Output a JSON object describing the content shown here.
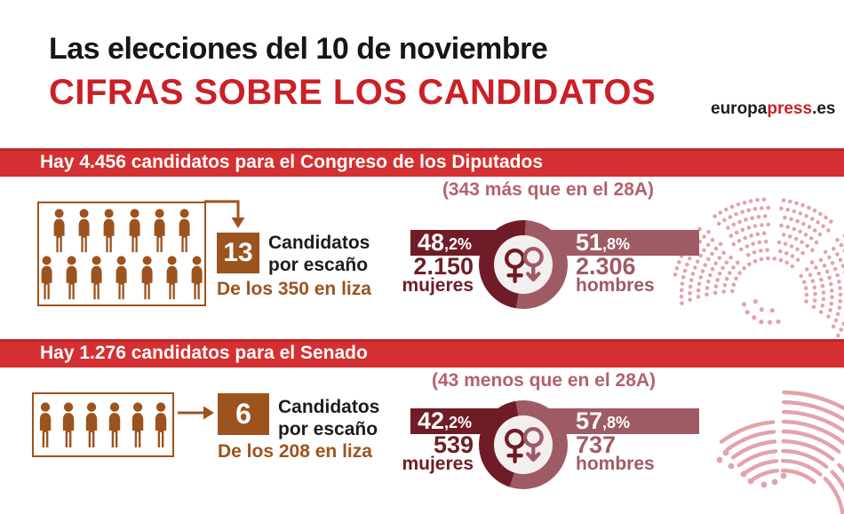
{
  "header": {
    "title": "Las elecciones del 10 de noviembre",
    "subtitle": "CIFRAS SOBRE LOS CANDIDATOS",
    "logo": {
      "black1": "europa",
      "red": "press",
      "black2": ".es"
    }
  },
  "colors": {
    "red": "#CB2026",
    "bar_red": "#D43032",
    "brown": "#9C531E",
    "dark_maroon": "#701C27",
    "mauve": "#9F5B64",
    "rose_note": "#B4616C",
    "seat_pink": "#E2A3AA",
    "donut_hole": "#F4EFEF"
  },
  "icons": {
    "person": "person-icon",
    "female": "female-gender-icon",
    "male": "male-gender-arrow-down-icon",
    "flow_arrow": "flow-arrow-icon",
    "congress_seats": "congress-hemicycle-icon",
    "senate_seats": "senate-hemicycle-icon"
  },
  "sections": [
    {
      "bar_title": "Hay 4.456 candidatos para el Congreso de los Diputados",
      "note": "(343 más que en el 28A)",
      "pictogram_rows": [
        6,
        7
      ],
      "per_seat": {
        "number": "13",
        "label": "Candidatos\npor escaño",
        "sublabel": "De los 350 en liza"
      },
      "women": {
        "pct_int": "48",
        "pct_dec": ",2%",
        "count": "2.150",
        "label": "mujeres",
        "value": 48.2
      },
      "men": {
        "pct_int": "51",
        "pct_dec": ",8%",
        "count": "2.306",
        "label": "hombres",
        "value": 51.8
      },
      "seats_total": 350
    },
    {
      "bar_title": "Hay 1.276 candidatos para el Senado",
      "note": "(43 menos que en el 28A)",
      "pictogram_rows": [
        6
      ],
      "per_seat": {
        "number": "6",
        "label": "Candidatos\npor escaño",
        "sublabel": "De los 208 en liza"
      },
      "women": {
        "pct_int": "42",
        "pct_dec": ",2%",
        "count": "539",
        "label": "mujeres",
        "value": 42.2
      },
      "men": {
        "pct_int": "57",
        "pct_dec": ",8%",
        "count": "737",
        "label": "hombres",
        "value": 57.8
      },
      "seats_total": 208
    }
  ],
  "chart_data": [
    {
      "type": "pie",
      "title": "Hay 4.456 candidatos para el Congreso de los Diputados",
      "subtitle": "(343 más que en el 28A)",
      "labels": [
        "mujeres",
        "hombres"
      ],
      "values_pct": [
        48.2,
        51.8
      ],
      "counts": [
        2150,
        2306
      ],
      "total_candidates": 4456,
      "candidates_per_seat": 13,
      "seats_in_play": 350,
      "colors": [
        "#701C27",
        "#9F5B64"
      ]
    },
    {
      "type": "pie",
      "title": "Hay 1.276 candidatos para el Senado",
      "subtitle": "(43 menos que en el 28A)",
      "labels": [
        "mujeres",
        "hombres"
      ],
      "values_pct": [
        42.2,
        57.8
      ],
      "counts": [
        539,
        737
      ],
      "total_candidates": 1276,
      "candidates_per_seat": 6,
      "seats_in_play": 208,
      "colors": [
        "#701C27",
        "#9F5B64"
      ]
    }
  ]
}
